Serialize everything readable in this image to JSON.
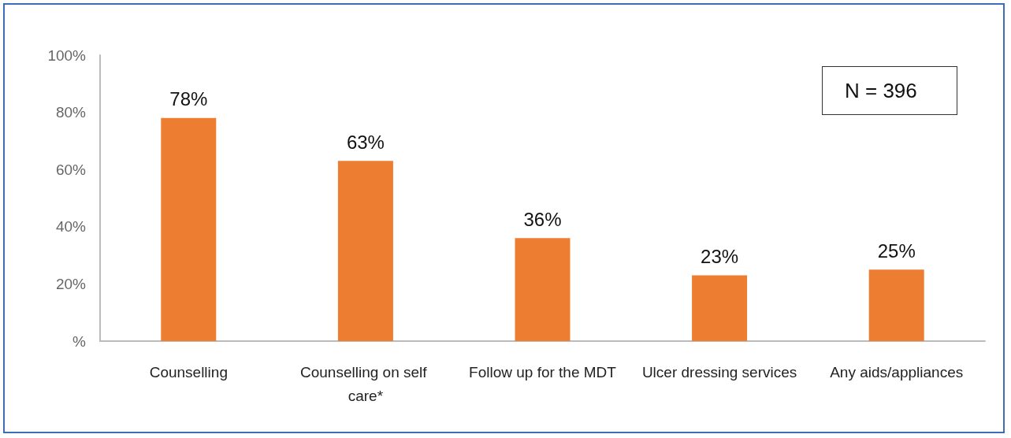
{
  "chart_data": {
    "type": "bar",
    "categories": [
      "Counselling",
      "Counselling on self care*",
      "Follow up for the MDT",
      "Ulcer dressing services",
      "Any aids/appliances"
    ],
    "values": [
      78,
      63,
      36,
      23,
      25
    ],
    "color": "#ed7d31",
    "value_labels": [
      "78%",
      "63%",
      "36%",
      "23%",
      "25%"
    ],
    "ylim": [
      0,
      100
    ],
    "yticks": [
      {
        "value": 0,
        "label": "%"
      },
      {
        "value": 20,
        "label": "20%"
      },
      {
        "value": 40,
        "label": "40%"
      },
      {
        "value": 60,
        "label": "60%"
      },
      {
        "value": 80,
        "label": "80%"
      },
      {
        "value": 100,
        "label": "100%"
      }
    ],
    "grid": false,
    "annotations": [
      "N = 396"
    ]
  }
}
